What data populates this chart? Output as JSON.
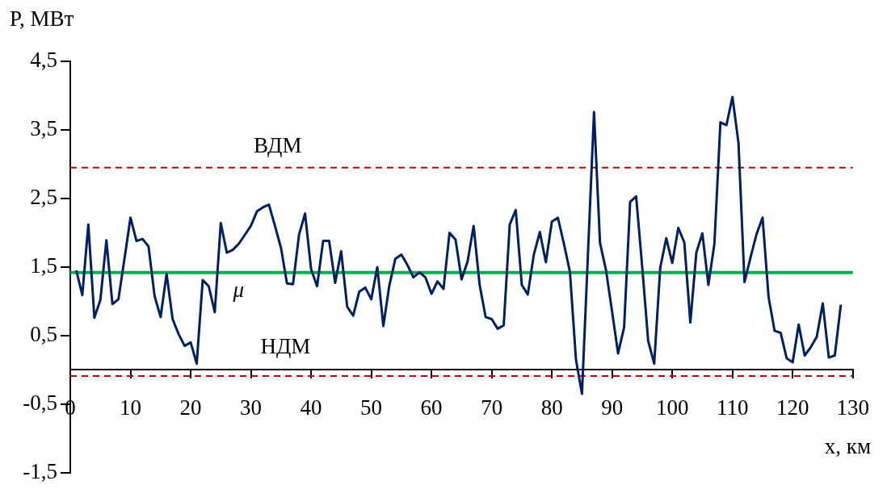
{
  "chart_data": {
    "type": "line",
    "xlabel": "x, км",
    "ylabel": "P, МВт",
    "x": [
      1,
      2,
      3,
      4,
      5,
      6,
      7,
      8,
      9,
      10,
      11,
      12,
      13,
      14,
      15,
      16,
      17,
      18,
      19,
      20,
      21,
      22,
      23,
      24,
      25,
      26,
      27,
      28,
      29,
      30,
      31,
      32,
      33,
      34,
      35,
      36,
      37,
      38,
      39,
      40,
      41,
      42,
      43,
      44,
      45,
      46,
      47,
      48,
      49,
      50,
      51,
      52,
      53,
      54,
      55,
      56,
      57,
      58,
      59,
      60,
      61,
      62,
      63,
      64,
      65,
      66,
      67,
      68,
      69,
      70,
      71,
      72,
      73,
      74,
      75,
      76,
      77,
      78,
      79,
      80,
      81,
      82,
      83,
      84,
      85,
      86,
      87,
      88,
      89,
      90,
      91,
      92,
      93,
      94,
      95,
      96,
      97,
      98,
      99,
      100,
      101,
      102,
      103,
      104,
      105,
      106,
      107,
      108,
      109,
      110,
      111,
      112,
      113,
      114,
      115,
      116,
      117,
      118,
      119,
      120,
      121,
      122,
      123,
      124,
      125,
      126,
      127,
      128
    ],
    "series": [
      {
        "color": "#002060",
        "values": [
          1.45,
          1.09,
          2.12,
          0.76,
          1.02,
          1.89,
          0.96,
          1.03,
          1.62,
          2.22,
          1.88,
          1.91,
          1.8,
          1.08,
          0.77,
          1.4,
          0.74,
          0.52,
          0.35,
          0.4,
          0.09,
          1.31,
          1.22,
          0.84,
          2.14,
          1.71,
          1.75,
          1.84,
          1.97,
          2.1,
          2.31,
          2.37,
          2.41,
          2.1,
          1.78,
          1.26,
          1.25,
          1.97,
          2.28,
          1.47,
          1.22,
          1.88,
          1.88,
          1.27,
          1.73,
          0.92,
          0.79,
          1.14,
          1.2,
          1.03,
          1.5,
          0.64,
          1.23,
          1.62,
          1.68,
          1.53,
          1.35,
          1.42,
          1.35,
          1.11,
          1.29,
          1.18,
          2.0,
          1.9,
          1.32,
          1.58,
          2.1,
          1.24,
          0.77,
          0.74,
          0.6,
          0.65,
          2.12,
          2.33,
          1.24,
          1.1,
          1.68,
          2.01,
          1.57,
          2.16,
          2.22,
          1.84,
          1.43,
          0.15,
          -0.35,
          1.7,
          3.76,
          1.85,
          1.45,
          0.85,
          0.24,
          0.62,
          2.45,
          2.53,
          1.51,
          0.42,
          0.09,
          1.49,
          1.92,
          1.56,
          2.07,
          1.86,
          0.69,
          1.71,
          1.99,
          1.24,
          1.84,
          3.61,
          3.57,
          3.98,
          3.31,
          1.28,
          1.64,
          1.98,
          2.22,
          1.06,
          0.57,
          0.54,
          0.17,
          0.11,
          0.66,
          0.21,
          0.33,
          0.48,
          0.97,
          0.18,
          0.21,
          0.95
        ]
      }
    ],
    "xlim": [
      0,
      130
    ],
    "xticks": [
      0,
      10,
      20,
      30,
      40,
      50,
      60,
      70,
      80,
      90,
      100,
      110,
      120,
      130
    ],
    "ylim": [
      -1.5,
      4.5
    ],
    "yticks": [
      {
        "value": -1.5,
        "label": "-1,5"
      },
      {
        "value": -0.5,
        "label": "-0,5"
      },
      {
        "value": 0.5,
        "label": "0,5"
      },
      {
        "value": 1.5,
        "label": "1,5"
      },
      {
        "value": 2.5,
        "label": "2,5"
      },
      {
        "value": 3.5,
        "label": "3,5"
      },
      {
        "value": 4.5,
        "label": "4,5"
      }
    ],
    "ref_lines": [
      {
        "axis": "y",
        "value": 2.95,
        "label": "ВДМ",
        "color": "#c00000",
        "line_style": "dashed"
      },
      {
        "axis": "y",
        "value": -0.09,
        "label": "НДМ",
        "color": "#c00000",
        "line_style": "dashed"
      },
      {
        "axis": "y",
        "value": 1.42,
        "label": "μ",
        "color": "#00b050",
        "line_style": "solid"
      }
    ],
    "grid": false,
    "legend": false,
    "marker": "none",
    "line_style": "solid"
  }
}
